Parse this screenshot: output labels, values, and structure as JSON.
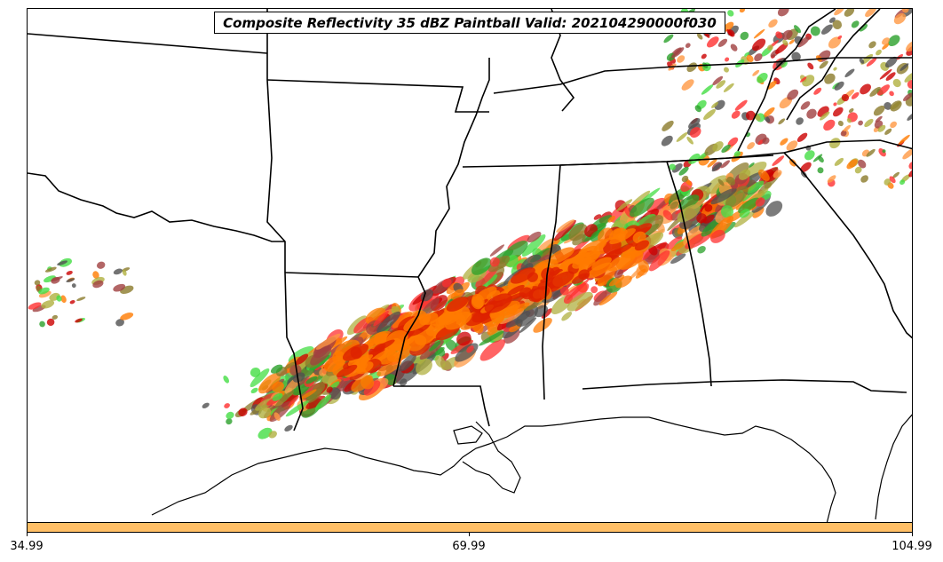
{
  "title": "Composite Reflectivity 35 dBZ Paintball Valid: 202104290000f030",
  "colorbar": {
    "color": "#ffbf66",
    "ticks": [
      "34.99",
      "69.99",
      "104.99"
    ]
  },
  "map": {
    "region": "Southeastern United States",
    "boundary_color": "#000000",
    "member_colors": [
      "#ff3030",
      "#cc0000",
      "#ff7a00",
      "#ff9944",
      "#a04040",
      "#505050",
      "#2aa02a",
      "#44dd44",
      "#b0b040",
      "#8b7a2a"
    ]
  }
}
